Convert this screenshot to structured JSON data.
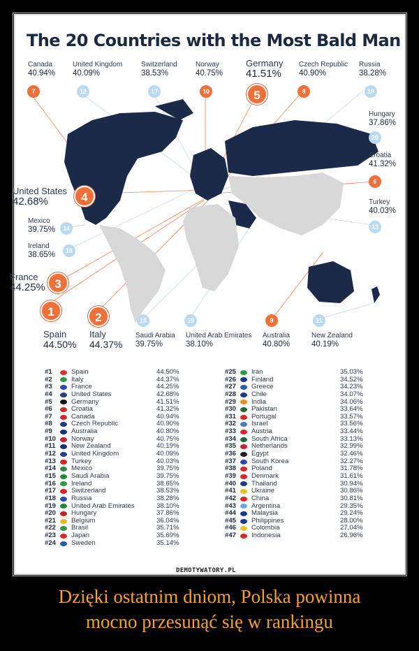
{
  "title": "The 20 Countries with the Most Bald Man",
  "map_labels": [
    {
      "name": "Canada",
      "pct": "40.94%",
      "rank": "7"
    },
    {
      "name": "United Kingdom",
      "pct": "40.09%",
      "rank": "12"
    },
    {
      "name": "Switzerland",
      "pct": "38.53%",
      "rank": "17"
    },
    {
      "name": "Norway",
      "pct": "40.75%",
      "rank": "10"
    },
    {
      "name": "Germany",
      "pct": "41.51%",
      "rank": "5"
    },
    {
      "name": "Czech Republic",
      "pct": "40.90%",
      "rank": "8"
    },
    {
      "name": "Russia",
      "pct": "38.28%",
      "rank": "18"
    },
    {
      "name": "Hungary",
      "pct": "37.86%",
      "rank": "20"
    },
    {
      "name": "Croatia",
      "pct": "41.32%",
      "rank": "6"
    },
    {
      "name": "Turkey",
      "pct": "40.03%",
      "rank": "13"
    },
    {
      "name": "United States",
      "pct": "42.68%",
      "rank": "4"
    },
    {
      "name": "Mexico",
      "pct": "39.75%",
      "rank": "14"
    },
    {
      "name": "Ireland",
      "pct": "38.65%",
      "rank": "16"
    },
    {
      "name": "France",
      "pct": "44.25%",
      "rank": "3"
    },
    {
      "name": "Spain",
      "pct": "44.50%",
      "rank": "1"
    },
    {
      "name": "Italy",
      "pct": "44.37%",
      "rank": "2"
    },
    {
      "name": "Saudi Arabia",
      "pct": "39.75%",
      "rank": "15"
    },
    {
      "name": "United Arab Emirates",
      "pct": "38.10%",
      "rank": "19"
    },
    {
      "name": "Australia",
      "pct": "40.80%",
      "rank": "9"
    },
    {
      "name": "New Zealand",
      "pct": "40.19%",
      "rank": "11"
    }
  ],
  "rankings_left": [
    {
      "rank": "#1",
      "country": "Spain",
      "value": "44.50%",
      "color": "#d8352a"
    },
    {
      "rank": "#2",
      "country": "Italy",
      "value": "44.37%",
      "color": "#2e9a48"
    },
    {
      "rank": "#3",
      "country": "France",
      "value": "44.25%",
      "color": "#2a4aa8"
    },
    {
      "rank": "#4",
      "country": "United States",
      "value": "42.68%",
      "color": "#2a3f7a"
    },
    {
      "rank": "#5",
      "country": "Germany",
      "value": "41.51%",
      "color": "#111111"
    },
    {
      "rank": "#6",
      "country": "Croatia",
      "value": "41.32%",
      "color": "#cc2a2a"
    },
    {
      "rank": "#7",
      "country": "Canada",
      "value": "40.94%",
      "color": "#d62828"
    },
    {
      "rank": "#8",
      "country": "Czech Republic",
      "value": "40.90%",
      "color": "#1d3a8a"
    },
    {
      "rank": "#9",
      "country": "Australia",
      "value": "40.80%",
      "color": "#1b2f7a"
    },
    {
      "rank": "#10",
      "country": "Norway",
      "value": "40.75%",
      "color": "#c8202f"
    },
    {
      "rank": "#11",
      "country": "New Zealand",
      "value": "40.19%",
      "color": "#1b2f7a"
    },
    {
      "rank": "#12",
      "country": "United Kingdom",
      "value": "40.09%",
      "color": "#2a3f8a"
    },
    {
      "rank": "#13",
      "country": "Turkey",
      "value": "40.03%",
      "color": "#e01f25"
    },
    {
      "rank": "#14",
      "country": "Mexico",
      "value": "39.75%",
      "color": "#2e8a48"
    },
    {
      "rank": "#15",
      "country": "Saudi Arabia",
      "value": "39.75%",
      "color": "#1f8a3a"
    },
    {
      "rank": "#16",
      "country": "Ireland",
      "value": "38.65%",
      "color": "#2e9a48"
    },
    {
      "rank": "#17",
      "country": "Switzerland",
      "value": "38.53%",
      "color": "#e01f25"
    },
    {
      "rank": "#18",
      "country": "Russia",
      "value": "38.28%",
      "color": "#2a4aa8"
    },
    {
      "rank": "#19",
      "country": "United Arab Emirates",
      "value": "38.10%",
      "color": "#1f8a3a"
    },
    {
      "rank": "#20",
      "country": "Hungary",
      "value": "37.86%",
      "color": "#c8202f"
    },
    {
      "rank": "#21",
      "country": "Belgium",
      "value": "36.04%",
      "color": "#e8b81a"
    },
    {
      "rank": "#22",
      "country": "Brasil",
      "value": "35.71%",
      "color": "#2e9a48"
    },
    {
      "rank": "#23",
      "country": "Japan",
      "value": "35.69%",
      "color": "#d62828"
    },
    {
      "rank": "#24",
      "country": "Sweden",
      "value": "35.14%",
      "color": "#2a5aa8"
    }
  ],
  "rankings_right": [
    {
      "rank": "#25",
      "country": "Iran",
      "value": "35.03%",
      "color": "#2e9a48"
    },
    {
      "rank": "#26",
      "country": "Finland",
      "value": "34.52%",
      "color": "#1d3a8a"
    },
    {
      "rank": "#27",
      "country": "Greece",
      "value": "34.23%",
      "color": "#2a5aa8"
    },
    {
      "rank": "#28",
      "country": "Chile",
      "value": "34.07%",
      "color": "#1d3a8a"
    },
    {
      "rank": "#29",
      "country": "India",
      "value": "34.06%",
      "color": "#f08a24"
    },
    {
      "rank": "#30",
      "country": "Pakistan",
      "value": "33.64%",
      "color": "#1f6a3a"
    },
    {
      "rank": "#31",
      "country": "Portugal",
      "value": "33.57%",
      "color": "#d62828"
    },
    {
      "rank": "#32",
      "country": "Israel",
      "value": "33.56%",
      "color": "#4a7ac8"
    },
    {
      "rank": "#33",
      "country": "Austria",
      "value": "33.44%",
      "color": "#d62828"
    },
    {
      "rank": "#34",
      "country": "South Africa",
      "value": "33.13%",
      "color": "#1f6a3a"
    },
    {
      "rank": "#35",
      "country": "Netherlands",
      "value": "32.99%",
      "color": "#c8202f"
    },
    {
      "rank": "#36",
      "country": "Egypt",
      "value": "32.46%",
      "color": "#222222"
    },
    {
      "rank": "#37",
      "country": "South Korea",
      "value": "32.27%",
      "color": "#2a4aa8"
    },
    {
      "rank": "#38",
      "country": "Poland",
      "value": "31.78%",
      "color": "#d62828"
    },
    {
      "rank": "#39",
      "country": "Denmark",
      "value": "31.61%",
      "color": "#d62828"
    },
    {
      "rank": "#40",
      "country": "Thailand",
      "value": "30.94%",
      "color": "#1d3a8a"
    },
    {
      "rank": "#41",
      "country": "Ukraine",
      "value": "30.86%",
      "color": "#e8c21a"
    },
    {
      "rank": "#42",
      "country": "China",
      "value": "30.81%",
      "color": "#d62828"
    },
    {
      "rank": "#43",
      "country": "Argentina",
      "value": "29.35%",
      "color": "#6aa8e0"
    },
    {
      "rank": "#44",
      "country": "Malaysia",
      "value": "29.24%",
      "color": "#1d3a8a"
    },
    {
      "rank": "#45",
      "country": "Philippines",
      "value": "28.00%",
      "color": "#1d3a8a"
    },
    {
      "rank": "#46",
      "country": "Colombia",
      "value": "27.04%",
      "color": "#e8c21a"
    },
    {
      "rank": "#47",
      "country": "Indonesia",
      "value": "26.96%",
      "color": "#d62828"
    }
  ],
  "watermark": "DEMOTYWATORY.PL",
  "caption_line1": "Dzięki ostatnim dniom, Polska powinna",
  "caption_line2": "mocno przesunąć się w rankingu",
  "colors": {
    "accent": "#f0703a",
    "faint_badge": "#b9daf0",
    "land_highlight": "#1c2a4a",
    "land_other": "#d8d8d8",
    "caption": "#f5a22c"
  }
}
